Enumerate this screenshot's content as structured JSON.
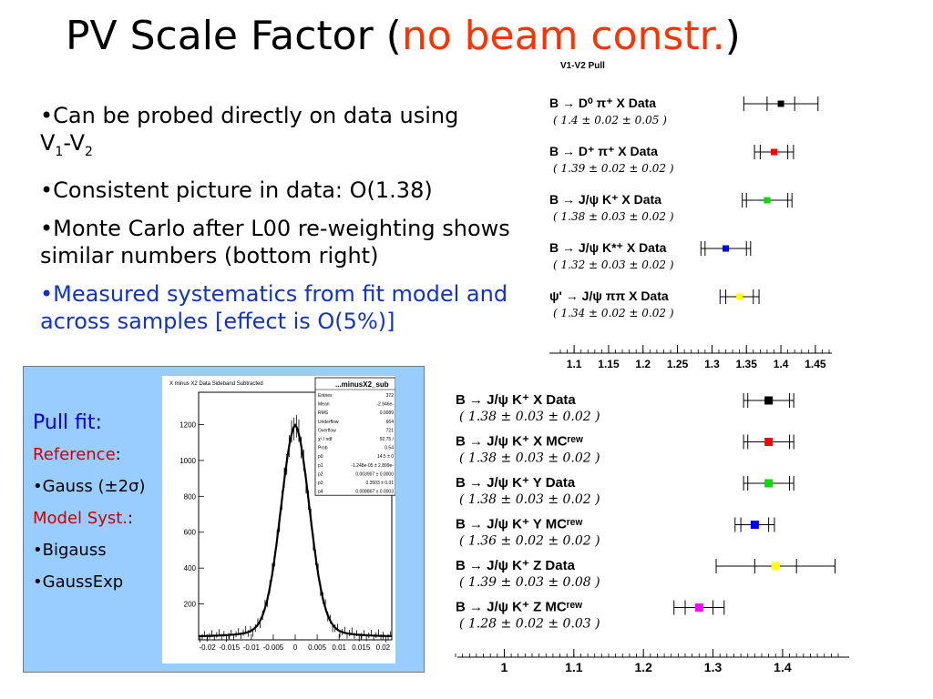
{
  "slide": {
    "title_main": "PV Scale Factor (",
    "title_red": "no beam constr.",
    "title_close": ")",
    "bullets": {
      "b1_line1": "•Can be probed directly on data using",
      "b1_v": "V",
      "b1_sub1": "1",
      "b1_dash": "-V",
      "b1_sub2": "2",
      "b2": "•Consistent picture in data: O(1.38)",
      "b3": "•Monte Carlo after L00 re-weighting shows similar numbers (bottom right)",
      "b4": "•Measured systematics from fit model and across samples [effect is O(5%)]"
    },
    "panel": {
      "heading": "Pull fit:",
      "ref_label": "Reference",
      "ref_colon": ":",
      "ref_item": "•Gauss (±2σ)",
      "syst_label": "Model Syst.",
      "syst_colon": ":",
      "syst_item1": "•Bigauss",
      "syst_item2": "•GaussExp"
    }
  },
  "chart_data": [
    {
      "type": "scatter",
      "title": "V1-V2 Pull",
      "xlim": [
        1.08,
        1.47
      ],
      "xticks": [
        "1.1",
        "1.15",
        "1.2",
        "1.25",
        "1.3",
        "1.35",
        "1.4",
        "1.45"
      ],
      "entries": [
        {
          "label": "B → D⁰ π⁺ X Data",
          "value_text": "( 1.4 ± 0.02 ± 0.05 )",
          "value": 1.4,
          "stat": 0.02,
          "syst": 0.05,
          "color": "#000000"
        },
        {
          "label": "B → D⁺ π⁺ X Data",
          "value_text": "( 1.39 ± 0.02 ± 0.02 )",
          "value": 1.39,
          "stat": 0.02,
          "syst": 0.02,
          "color": "#ff0000"
        },
        {
          "label": "B → J/ψ K⁺ X Data",
          "value_text": "( 1.38 ± 0.03 ± 0.02 )",
          "value": 1.38,
          "stat": 0.03,
          "syst": 0.02,
          "color": "#00dd00"
        },
        {
          "label": "B → J/ψ K*⁺ X Data",
          "value_text": "( 1.32 ± 0.03 ± 0.02 )",
          "value": 1.32,
          "stat": 0.03,
          "syst": 0.02,
          "color": "#0000ff"
        },
        {
          "label": "ψ' → J/ψ ππ X Data",
          "value_text": "( 1.34 ± 0.02 ± 0.02 )",
          "value": 1.34,
          "stat": 0.02,
          "syst": 0.02,
          "color": "#ffff00"
        }
      ]
    },
    {
      "type": "scatter",
      "title": "",
      "xlim": [
        0.93,
        1.48
      ],
      "xticks": [
        "1",
        "1.1",
        "1.2",
        "1.3",
        "1.4"
      ],
      "entries": [
        {
          "label": "B → J/ψ K⁺ X Data",
          "value_text": "( 1.38 ± 0.03 ± 0.02 )",
          "value": 1.38,
          "stat": 0.03,
          "syst": 0.02,
          "color": "#000000"
        },
        {
          "label": "B → J/ψ K⁺ X MCʳᵉʷ",
          "value_text": "( 1.38 ± 0.03 ± 0.02 )",
          "value": 1.38,
          "stat": 0.03,
          "syst": 0.02,
          "color": "#ff0000"
        },
        {
          "label": "B → J/ψ K⁺ Y Data",
          "value_text": "( 1.38 ± 0.03 ± 0.02 )",
          "value": 1.38,
          "stat": 0.03,
          "syst": 0.02,
          "color": "#00dd00"
        },
        {
          "label": "B → J/ψ K⁺ Y MCʳᵉʷ",
          "value_text": "( 1.36 ± 0.02 ± 0.02 )",
          "value": 1.36,
          "stat": 0.02,
          "syst": 0.02,
          "color": "#0000ff"
        },
        {
          "label": "B → J/ψ K⁺ Z Data",
          "value_text": "( 1.39 ± 0.03 ± 0.08 )",
          "value": 1.39,
          "stat": 0.03,
          "syst": 0.08,
          "color": "#ffff00"
        },
        {
          "label": "B → J/ψ K⁺ Z MCʳᵉʷ",
          "value_text": "( 1.28 ± 0.02 ± 0.03 )",
          "value": 1.28,
          "stat": 0.02,
          "syst": 0.03,
          "color": "#ff00ff"
        }
      ]
    },
    {
      "type": "line",
      "title": "X minus X2 Data Sideband Subtracted",
      "stats_title": "...minusX2_sub",
      "stats": [
        [
          "Entries",
          "372"
        ],
        [
          "Mean",
          "-2.946e-"
        ],
        [
          "RMS",
          "0.0089"
        ],
        [
          "Underflow",
          "664"
        ],
        [
          "Overflow",
          "721"
        ],
        [
          "χ² / ndf",
          "92.75 /"
        ],
        [
          "Prob",
          "0.54"
        ],
        [
          "p0",
          "14.5 ± 0"
        ],
        [
          "p1",
          "-1.248e-05 ± 2.899e-"
        ],
        [
          "p2",
          "0.003907 ± 0.0000"
        ],
        [
          "p3",
          "0.3503 ± 0.01"
        ],
        [
          "p4",
          "0.008867 ± 0.0003"
        ]
      ],
      "xlim": [
        -0.022,
        0.022
      ],
      "ylim": [
        0,
        1380
      ],
      "xticks": [
        "-0.02",
        "-0.015",
        "-0.01",
        "-0.005",
        "0",
        "0.005",
        "0.01",
        "0.015",
        "0.02"
      ],
      "yticks": [
        "200",
        "400",
        "600",
        "800",
        "1000",
        "1200"
      ],
      "peak_value": 1180
    }
  ]
}
